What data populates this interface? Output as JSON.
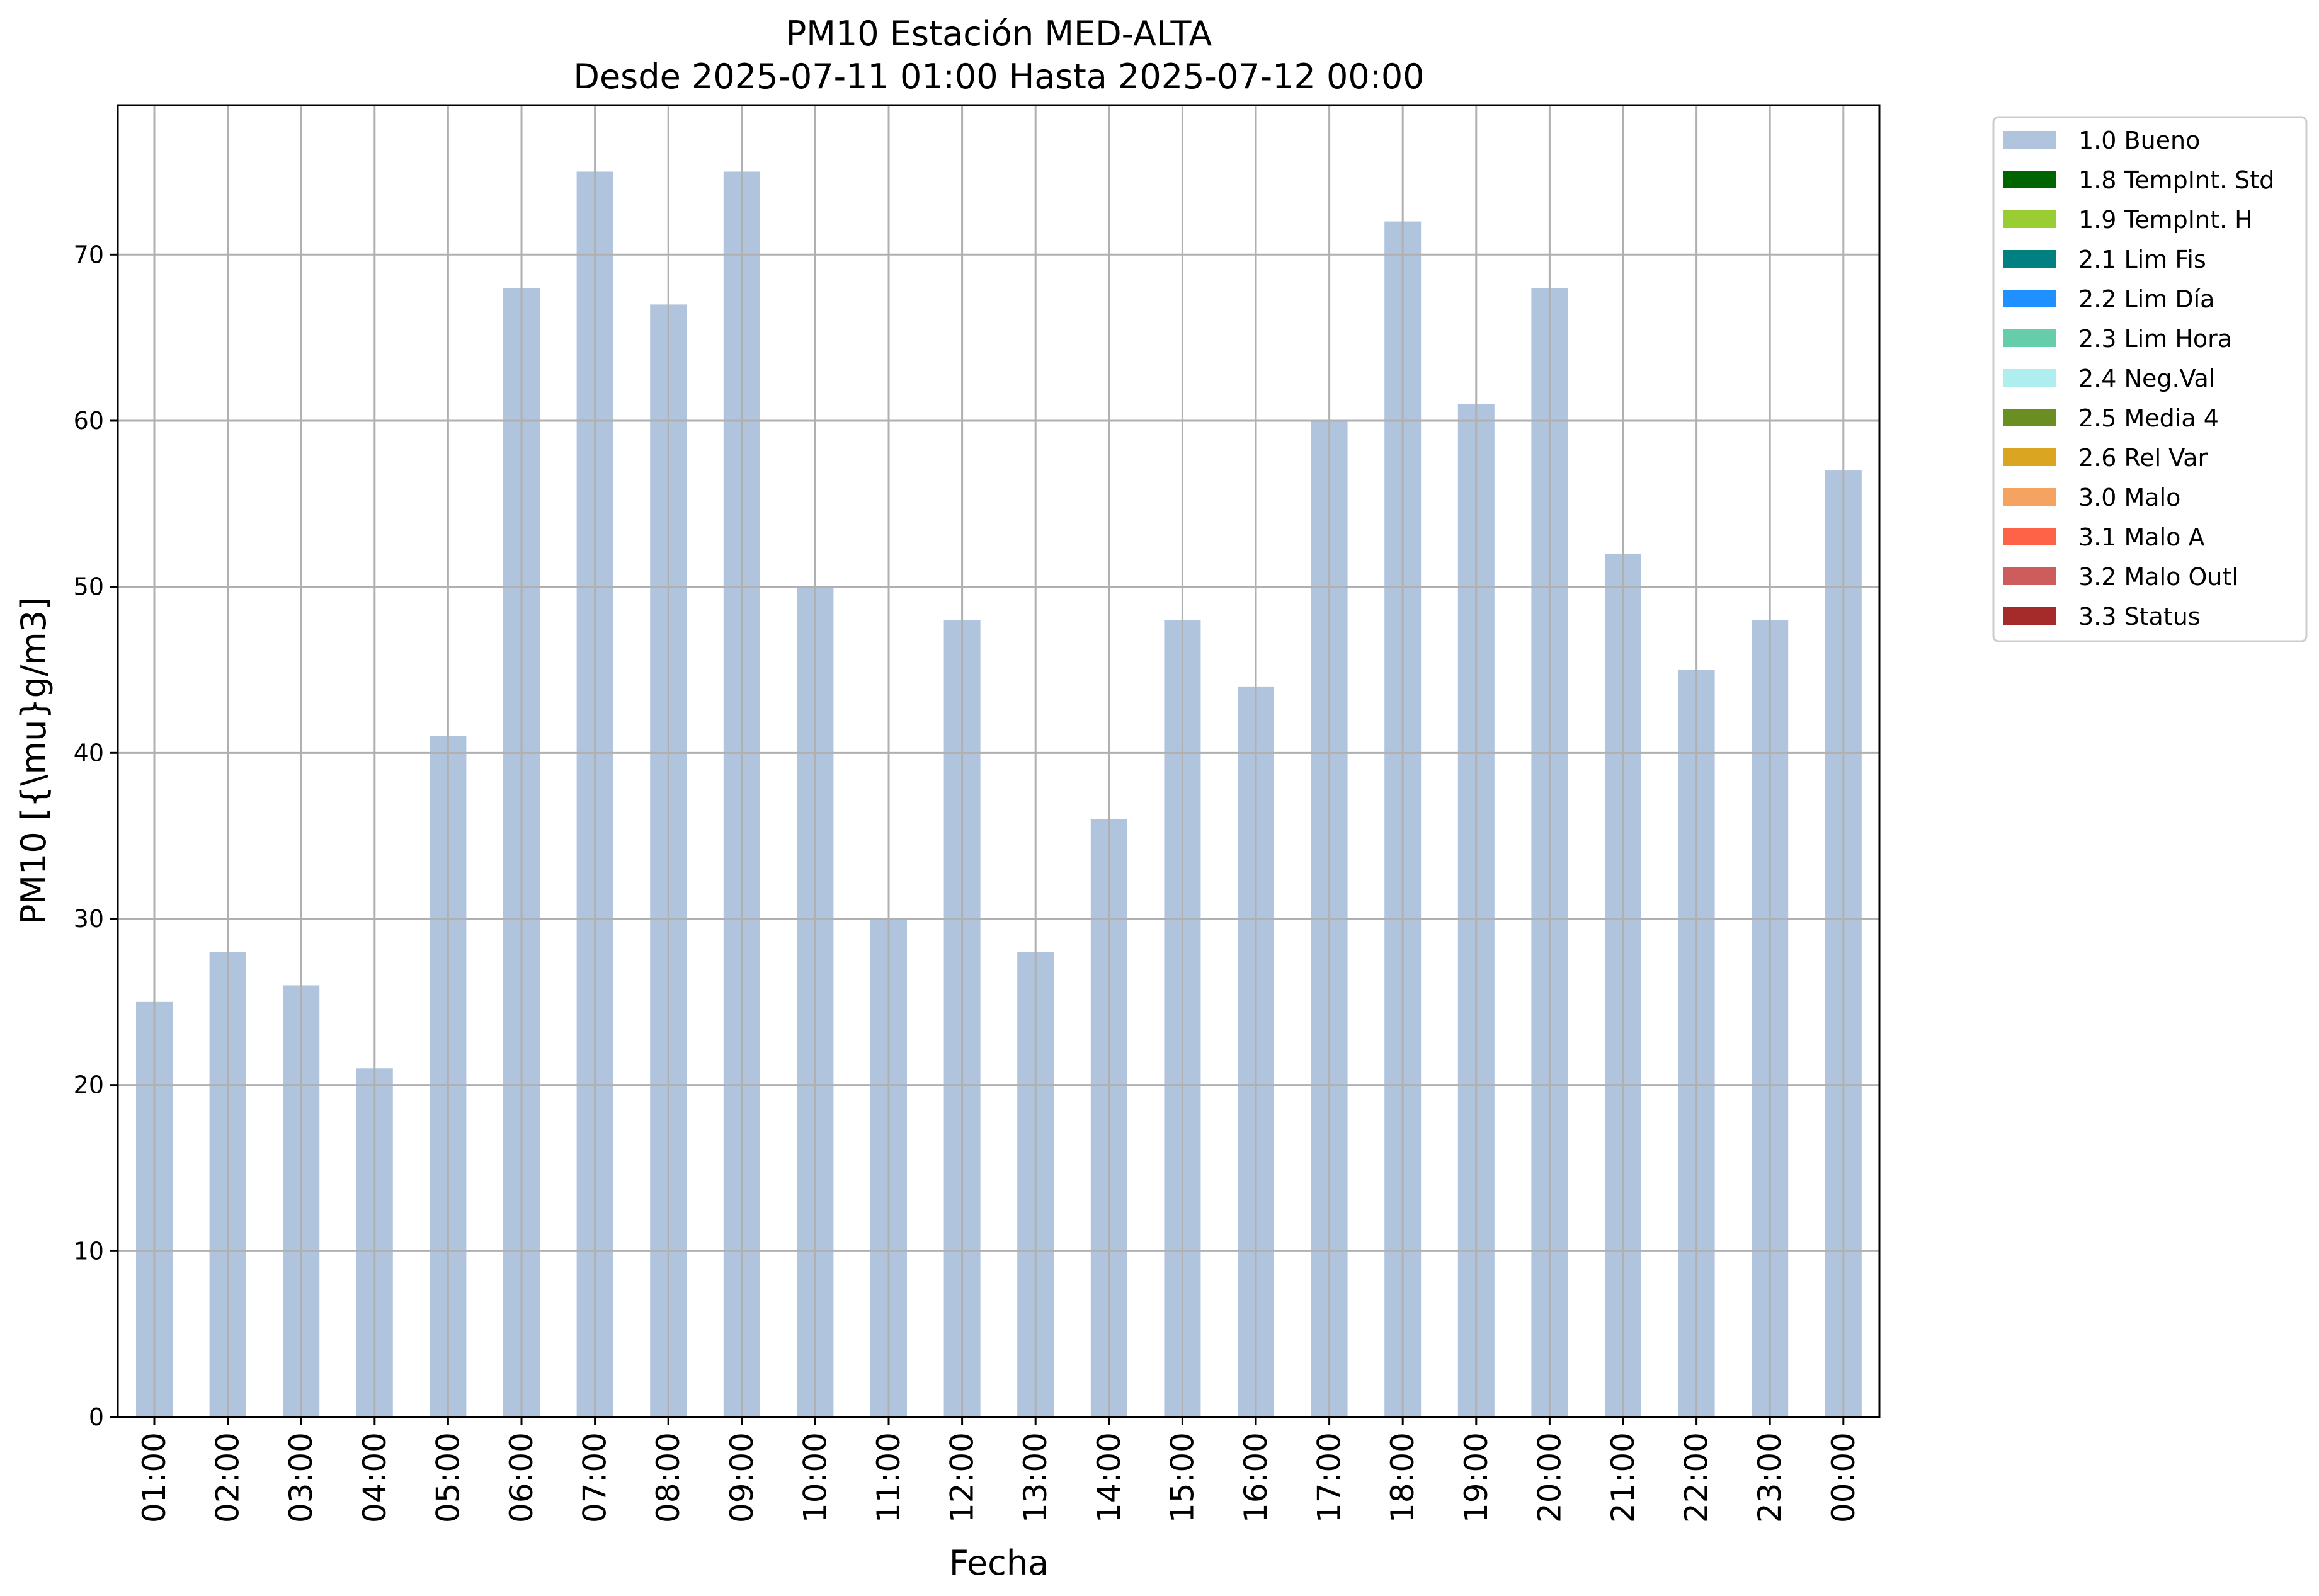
{
  "chart_data": {
    "type": "bar",
    "title": "PM10 Estación MED-ALTA",
    "subtitle": "Desde 2025-07-11 01:00 Hasta 2025-07-12 00:00",
    "xlabel": "Fecha",
    "ylabel": "PM10 [{\\mu}g/m3]",
    "ylim": [
      0,
      79
    ],
    "yticks": [
      0,
      10,
      20,
      30,
      40,
      50,
      60,
      70
    ],
    "grid": true,
    "legend_position": "outside-top-right",
    "categories": [
      "01:00",
      "02:00",
      "03:00",
      "04:00",
      "05:00",
      "06:00",
      "07:00",
      "08:00",
      "09:00",
      "10:00",
      "11:00",
      "12:00",
      "13:00",
      "14:00",
      "15:00",
      "16:00",
      "17:00",
      "18:00",
      "19:00",
      "20:00",
      "21:00",
      "22:00",
      "23:00",
      "00:00"
    ],
    "series": [
      {
        "name": "1.0 Bueno",
        "color": "#b0c4de",
        "values": [
          25,
          28,
          26,
          21,
          41,
          68,
          75,
          67,
          75,
          50,
          30,
          48,
          28,
          36,
          48,
          44,
          60,
          72,
          61,
          68,
          52,
          45,
          48,
          57
        ]
      }
    ],
    "legend": [
      {
        "label": "1.0 Bueno",
        "color": "#b0c4de"
      },
      {
        "label": "1.8 TempInt. Std",
        "color": "#006400"
      },
      {
        "label": "1.9 TempInt. H",
        "color": "#9acd32"
      },
      {
        "label": "2.1 Lim Fis",
        "color": "#008080"
      },
      {
        "label": "2.2 Lim Día",
        "color": "#1e90ff"
      },
      {
        "label": "2.3 Lim Hora",
        "color": "#66cdaa"
      },
      {
        "label": "2.4 Neg.Val",
        "color": "#afeeee"
      },
      {
        "label": "2.5 Media 4",
        "color": "#6b8e23"
      },
      {
        "label": "2.6 Rel Var",
        "color": "#daa520"
      },
      {
        "label": "3.0 Malo",
        "color": "#f4a460"
      },
      {
        "label": "3.1 Malo A",
        "color": "#ff6347"
      },
      {
        "label": "3.2 Malo Outl",
        "color": "#cd5c5c"
      },
      {
        "label": "3.3 Status",
        "color": "#a52a2a"
      }
    ]
  }
}
